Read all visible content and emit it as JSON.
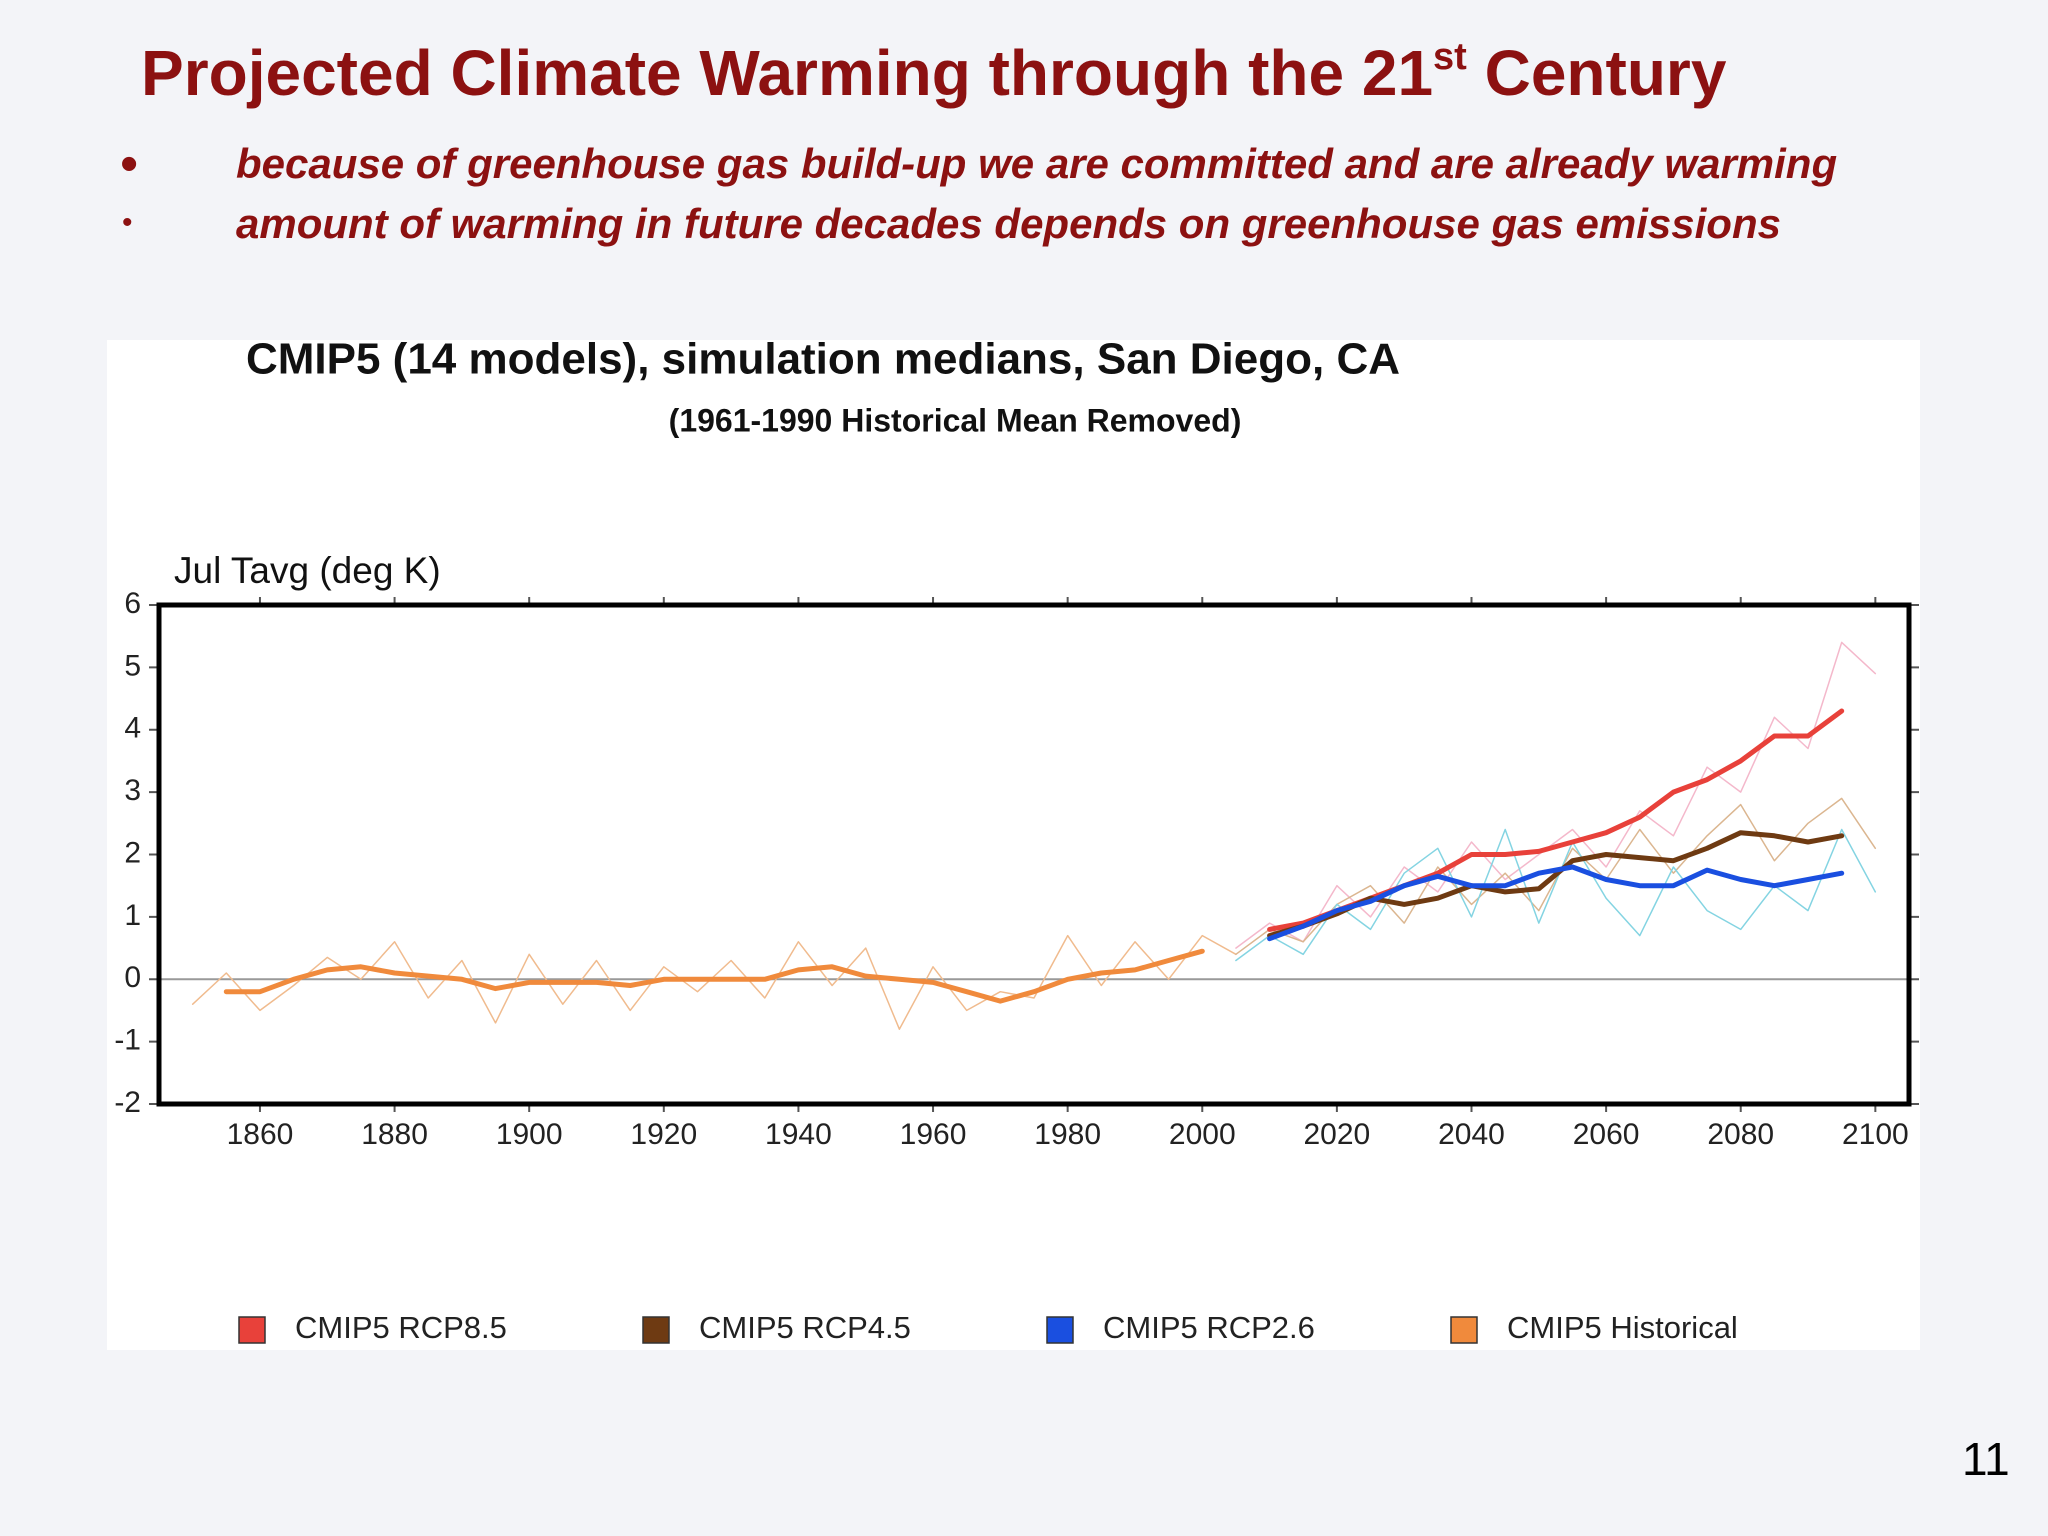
{
  "slide": {
    "title": {
      "main": "Projected Climate Warming through the 21",
      "sup": "st",
      "end": " Century"
    },
    "bullets": [
      "because of greenhouse gas build-up we are committed and are already warming",
      "amount of warming in future decades depends on greenhouse gas emissions"
    ],
    "page_number": "11"
  },
  "chart_data": {
    "type": "line",
    "title": "CMIP5 (14 models), simulation medians, San Diego, CA",
    "subtitle": "(1961-1990 Historical Mean Removed)",
    "y_label": "Jul Tavg (deg K)",
    "xlim": [
      1845,
      2105
    ],
    "xticks": [
      1860,
      1880,
      1900,
      1920,
      1940,
      1960,
      1980,
      2000,
      2020,
      2040,
      2060,
      2080,
      2100
    ],
    "ylim": [
      -2,
      6
    ],
    "yticks": [
      -2,
      -1,
      0,
      1,
      2,
      3,
      4,
      5,
      6
    ],
    "legend": "bottom",
    "series": [
      {
        "color": "#f0bb8e",
        "width": 1.5,
        "x": [
          1850,
          1855,
          1860,
          1865,
          1870,
          1875,
          1880,
          1885,
          1890,
          1895,
          1900,
          1905,
          1910,
          1915,
          1920,
          1925,
          1930,
          1935,
          1940,
          1945,
          1950,
          1955,
          1960,
          1965,
          1970,
          1975,
          1980,
          1985,
          1990,
          1995,
          2000,
          2005
        ],
        "values": [
          -0.4,
          0.1,
          -0.5,
          -0.1,
          0.35,
          0.0,
          0.6,
          -0.3,
          0.3,
          -0.7,
          0.4,
          -0.4,
          0.3,
          -0.5,
          0.2,
          -0.2,
          0.3,
          -0.3,
          0.6,
          -0.1,
          0.5,
          -0.8,
          0.2,
          -0.5,
          -0.2,
          -0.3,
          0.7,
          -0.1,
          0.6,
          0.0,
          0.7,
          0.4
        ]
      },
      {
        "color": "#f4b8cb",
        "width": 1.5,
        "x": [
          2005,
          2010,
          2015,
          2020,
          2025,
          2030,
          2035,
          2040,
          2045,
          2050,
          2055,
          2060,
          2065,
          2070,
          2075,
          2080,
          2085,
          2090,
          2095,
          2100
        ],
        "values": [
          0.5,
          0.9,
          0.6,
          1.5,
          1.0,
          1.8,
          1.4,
          2.2,
          1.6,
          2.0,
          2.4,
          1.8,
          2.7,
          2.3,
          3.4,
          3.0,
          4.2,
          3.7,
          5.4,
          4.9
        ]
      },
      {
        "color": "#dbb690",
        "width": 1.5,
        "x": [
          2005,
          2010,
          2015,
          2020,
          2025,
          2030,
          2035,
          2040,
          2045,
          2050,
          2055,
          2060,
          2065,
          2070,
          2075,
          2080,
          2085,
          2090,
          2095,
          2100
        ],
        "values": [
          0.4,
          0.8,
          0.6,
          1.2,
          1.5,
          0.9,
          1.8,
          1.2,
          1.7,
          1.1,
          2.1,
          1.6,
          2.4,
          1.7,
          2.3,
          2.8,
          1.9,
          2.5,
          2.9,
          2.1
        ]
      },
      {
        "color": "#84d4e2",
        "width": 1.5,
        "x": [
          2005,
          2010,
          2015,
          2020,
          2025,
          2030,
          2035,
          2040,
          2045,
          2050,
          2055,
          2060,
          2065,
          2070,
          2075,
          2080,
          2085,
          2090,
          2095,
          2100
        ],
        "values": [
          0.3,
          0.7,
          0.4,
          1.2,
          0.8,
          1.7,
          2.1,
          1.0,
          2.4,
          0.9,
          2.2,
          1.3,
          0.7,
          1.8,
          1.1,
          0.8,
          1.5,
          1.1,
          2.4,
          1.4
        ]
      },
      {
        "name": "CMIP5 RCP8.5",
        "color": "#e8413a",
        "width": 5,
        "x": [
          2010,
          2015,
          2020,
          2025,
          2030,
          2035,
          2040,
          2045,
          2050,
          2055,
          2060,
          2065,
          2070,
          2075,
          2080,
          2085,
          2090,
          2095
        ],
        "values": [
          0.8,
          0.9,
          1.1,
          1.3,
          1.5,
          1.7,
          2.0,
          2.0,
          2.05,
          2.2,
          2.35,
          2.6,
          3.0,
          3.2,
          3.5,
          3.9,
          3.9,
          4.3
        ]
      },
      {
        "name": "CMIP5 RCP4.5",
        "color": "#6e3a12",
        "width": 5,
        "x": [
          2010,
          2015,
          2020,
          2025,
          2030,
          2035,
          2040,
          2045,
          2050,
          2055,
          2060,
          2065,
          2070,
          2075,
          2080,
          2085,
          2090,
          2095
        ],
        "values": [
          0.7,
          0.85,
          1.05,
          1.3,
          1.2,
          1.3,
          1.5,
          1.4,
          1.45,
          1.9,
          2.0,
          1.95,
          1.9,
          2.1,
          2.35,
          2.3,
          2.2,
          2.3
        ]
      },
      {
        "name": "CMIP5 RCP2.6",
        "color": "#1a4fe0",
        "width": 5,
        "x": [
          2010,
          2015,
          2020,
          2025,
          2030,
          2035,
          2040,
          2045,
          2050,
          2055,
          2060,
          2065,
          2070,
          2075,
          2080,
          2085,
          2090,
          2095
        ],
        "values": [
          0.65,
          0.85,
          1.1,
          1.25,
          1.5,
          1.65,
          1.5,
          1.5,
          1.7,
          1.8,
          1.6,
          1.5,
          1.5,
          1.75,
          1.6,
          1.5,
          1.6,
          1.7
        ]
      },
      {
        "name": "CMIP5 Historical",
        "color": "#f08a3c",
        "width": 5,
        "x": [
          1855,
          1860,
          1865,
          1870,
          1875,
          1880,
          1885,
          1890,
          1895,
          1900,
          1905,
          1910,
          1915,
          1920,
          1925,
          1930,
          1935,
          1940,
          1945,
          1950,
          1955,
          1960,
          1965,
          1970,
          1975,
          1980,
          1985,
          1990,
          1995,
          2000
        ],
        "values": [
          -0.2,
          -0.2,
          0,
          0.15,
          0.2,
          0.1,
          0.05,
          0,
          -0.15,
          -0.05,
          -0.05,
          -0.05,
          -0.1,
          0,
          0,
          0,
          0,
          0.15,
          0.2,
          0.05,
          0,
          -0.05,
          -0.2,
          -0.35,
          -0.2,
          0,
          0.1,
          0.15,
          0.3,
          0.45
        ]
      }
    ]
  }
}
